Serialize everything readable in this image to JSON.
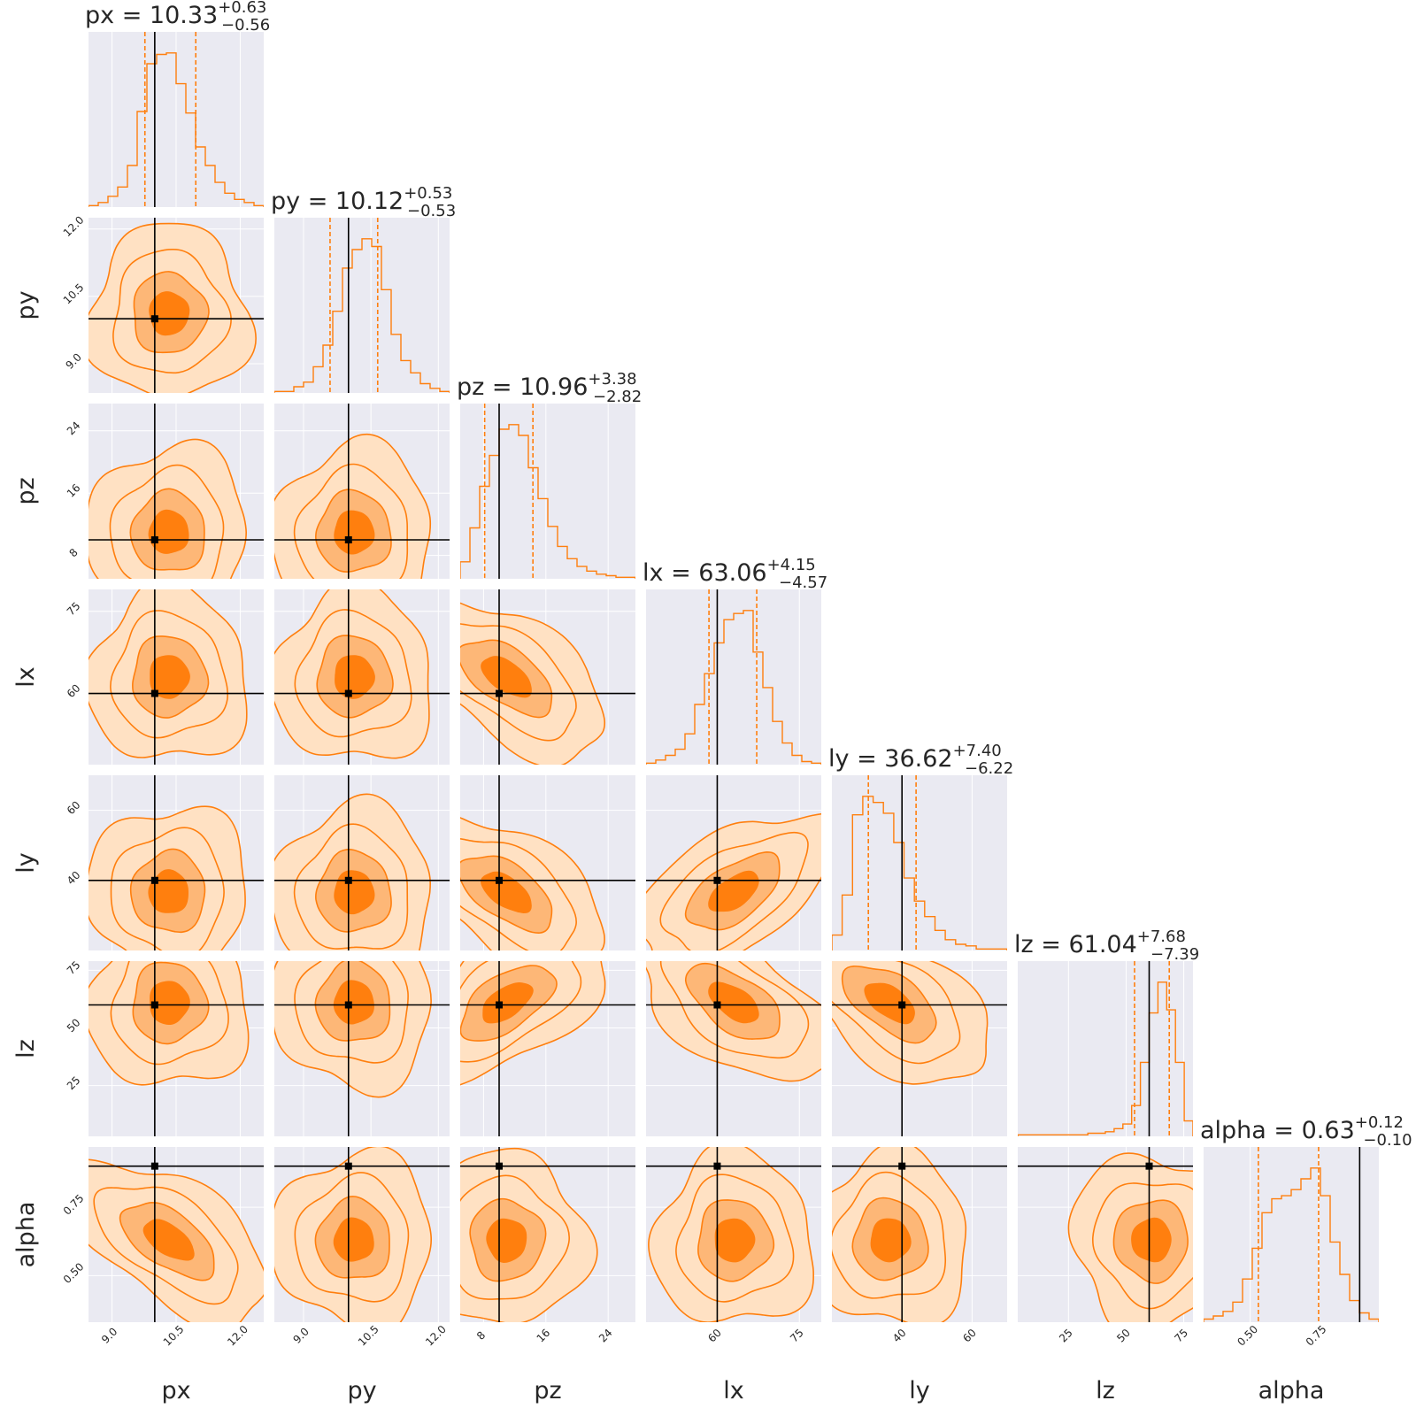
{
  "chart_data": {
    "type": "corner",
    "parameters": [
      "px",
      "py",
      "pz",
      "lx",
      "ly",
      "lz",
      "alpha"
    ],
    "axis_labels": [
      "px",
      "py",
      "pz",
      "lx",
      "ly",
      "lz",
      "alpha"
    ],
    "ranges": [
      [
        8.45,
        12.55
      ],
      [
        8.35,
        12.25
      ],
      [
        5.0,
        27.5
      ],
      [
        47,
        79
      ],
      [
        20,
        70
      ],
      [
        3,
        79
      ],
      [
        0.33,
        0.97
      ]
    ],
    "ticks": [
      [
        "9.0",
        "10.5",
        "12.0"
      ],
      [
        "9.0",
        "10.5",
        "12.0"
      ],
      [
        "8",
        "16",
        "24"
      ],
      [
        "60",
        "75"
      ],
      [
        "40",
        "60"
      ],
      [
        "25",
        "50",
        "75"
      ],
      [
        "0.50",
        "0.75"
      ]
    ],
    "tick_values": [
      [
        9.0,
        10.5,
        12.0
      ],
      [
        9.0,
        10.5,
        12.0
      ],
      [
        8,
        16,
        24
      ],
      [
        60,
        75
      ],
      [
        40,
        60
      ],
      [
        25,
        50,
        75
      ],
      [
        0.5,
        0.75
      ]
    ],
    "truth": [
      10.0,
      10.0,
      10.0,
      60.0,
      40.0,
      60.0,
      0.9
    ],
    "titles": [
      {
        "name": "px",
        "median": "10.33",
        "plus": "+0.63",
        "minus": "−0.56"
      },
      {
        "name": "py",
        "median": "10.12",
        "plus": "+0.53",
        "minus": "−0.53"
      },
      {
        "name": "pz",
        "median": "10.96",
        "plus": "+3.38",
        "minus": "−2.82"
      },
      {
        "name": "lx",
        "median": "63.06",
        "plus": "+4.15",
        "minus": "−4.57"
      },
      {
        "name": "ly",
        "median": "36.62",
        "plus": "+7.40",
        "minus": "−6.22"
      },
      {
        "name": "lz",
        "median": "61.04",
        "plus": "+7.68",
        "minus": "−7.39"
      },
      {
        "name": "alpha",
        "median": "0.63",
        "plus": "+0.12",
        "minus": "−0.10"
      }
    ],
    "quantile_lines": [
      [
        9.77,
        10.96
      ],
      [
        9.59,
        10.65
      ],
      [
        8.14,
        14.34
      ],
      [
        58.49,
        67.21
      ],
      [
        30.4,
        44.02
      ],
      [
        53.65,
        68.72
      ],
      [
        0.53,
        0.75
      ]
    ],
    "histograms": [
      [
        0.01,
        0.03,
        0.07,
        0.13,
        0.27,
        0.62,
        0.93,
        0.99,
        1.0,
        0.8,
        0.61,
        0.39,
        0.27,
        0.16,
        0.09,
        0.05,
        0.03,
        0.01
      ],
      [
        0.01,
        0.01,
        0.04,
        0.07,
        0.17,
        0.31,
        0.53,
        0.81,
        0.93,
        1.0,
        0.95,
        0.67,
        0.38,
        0.21,
        0.13,
        0.06,
        0.03,
        0.01
      ],
      [
        0.11,
        0.33,
        0.6,
        0.8,
        0.97,
        1.0,
        0.93,
        0.72,
        0.52,
        0.34,
        0.21,
        0.13,
        0.08,
        0.05,
        0.03,
        0.02,
        0.01,
        0.01
      ],
      [
        0.01,
        0.03,
        0.06,
        0.1,
        0.2,
        0.39,
        0.59,
        0.79,
        0.94,
        0.98,
        1.0,
        0.73,
        0.5,
        0.28,
        0.14,
        0.06,
        0.02,
        0.01
      ],
      [
        0.1,
        0.36,
        0.88,
        1.0,
        0.96,
        0.89,
        0.7,
        0.47,
        0.32,
        0.22,
        0.13,
        0.07,
        0.04,
        0.03,
        0.01,
        0.01,
        0.01
      ],
      [
        0.01,
        0.01,
        0.01,
        0.01,
        0.01,
        0.01,
        0.01,
        0.01,
        0.02,
        0.02,
        0.03,
        0.05,
        0.08,
        0.2,
        0.48,
        0.8,
        1.0,
        0.82,
        0.48,
        0.1
      ],
      [
        0.02,
        0.04,
        0.07,
        0.13,
        0.28,
        0.48,
        0.71,
        0.8,
        0.82,
        0.86,
        0.93,
        1.0,
        0.82,
        0.52,
        0.31,
        0.14,
        0.06,
        0.02
      ]
    ],
    "contour_levels": [
      "0.5",
      "1.0",
      "1.5",
      "2.0 sigma"
    ],
    "colors": {
      "background": "#eaeaf2",
      "grid": "#ffffff",
      "line": "#ff7f0e",
      "fill_outer": "#ffe1c3",
      "fill_mid": "#fdb777",
      "fill_inner": "#ff7f0e",
      "truth": "#000000",
      "text": "#262626"
    }
  }
}
